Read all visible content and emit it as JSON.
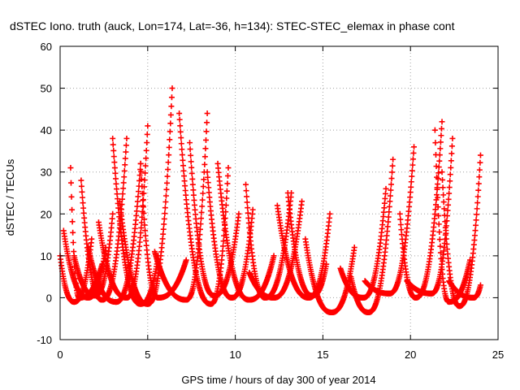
{
  "chart_data": {
    "type": "scatter",
    "title": "dSTEC Iono. truth (auck, Lon=174, Lat=-36, h=134): STEC-STEC_elemax in phase cont",
    "xlabel": "GPS time / hours of day 300 of year 2014",
    "ylabel": "dSTEC  / TECUs",
    "xlim": [
      0,
      25
    ],
    "ylim": [
      -10,
      60
    ],
    "x_ticks": [
      0,
      5,
      10,
      15,
      20,
      25
    ],
    "y_ticks": [
      -10,
      0,
      10,
      20,
      30,
      40,
      50,
      60
    ],
    "grid": true,
    "marker": "+",
    "color": "#ff0000",
    "passes": [
      {
        "t0": 0.0,
        "t1": 1.8,
        "tmin": 0.8,
        "vmin": -1.0,
        "v0": 10.0,
        "v1": 14.0
      },
      {
        "t0": 0.2,
        "t1": 2.6,
        "tmin": 1.6,
        "vmin": 0.0,
        "v0": 16.0,
        "v1": 12.0
      },
      {
        "t0": 0.6,
        "t1": 2.4,
        "tmin": 1.1,
        "vmin": 0.0,
        "v0": 31.0,
        "v1": 8.0
      },
      {
        "t0": 0.8,
        "t1": 3.0,
        "tmin": 2.0,
        "vmin": 0.5,
        "v0": 10.0,
        "v1": 20.0
      },
      {
        "t0": 1.2,
        "t1": 3.8,
        "tmin": 2.4,
        "vmin": -0.5,
        "v0": 28.0,
        "v1": 38.0
      },
      {
        "t0": 1.6,
        "t1": 4.6,
        "tmin": 3.2,
        "vmin": -1.0,
        "v0": 12.0,
        "v1": 32.0
      },
      {
        "t0": 2.2,
        "t1": 5.0,
        "tmin": 3.8,
        "vmin": 0.0,
        "v0": 18.0,
        "v1": 41.0
      },
      {
        "t0": 3.0,
        "t1": 5.6,
        "tmin": 4.6,
        "vmin": -1.5,
        "v0": 38.0,
        "v1": 10.0
      },
      {
        "t0": 3.4,
        "t1": 6.4,
        "tmin": 5.0,
        "vmin": -1.5,
        "v0": 23.0,
        "v1": 50.0
      },
      {
        "t0": 4.6,
        "t1": 7.2,
        "tmin": 5.6,
        "vmin": 0.0,
        "v0": 32.0,
        "v1": 9.0
      },
      {
        "t0": 5.4,
        "t1": 8.4,
        "tmin": 7.2,
        "vmin": -0.5,
        "v0": 11.0,
        "v1": 44.0
      },
      {
        "t0": 6.8,
        "t1": 9.6,
        "tmin": 8.6,
        "vmin": -1.5,
        "v0": 44.0,
        "v1": 31.0
      },
      {
        "t0": 7.4,
        "t1": 10.2,
        "tmin": 8.8,
        "vmin": 0.5,
        "v0": 37.0,
        "v1": 20.0
      },
      {
        "t0": 8.4,
        "t1": 11.0,
        "tmin": 9.8,
        "vmin": 0.0,
        "v0": 30.0,
        "v1": 21.0
      },
      {
        "t0": 9.0,
        "t1": 12.2,
        "tmin": 10.8,
        "vmin": -0.5,
        "v0": 32.0,
        "v1": 10.0
      },
      {
        "t0": 10.6,
        "t1": 13.2,
        "tmin": 11.7,
        "vmin": 0.0,
        "v0": 27.0,
        "v1": 25.0
      },
      {
        "t0": 10.8,
        "t1": 13.8,
        "tmin": 12.2,
        "vmin": 0.0,
        "v0": 6.0,
        "v1": 23.0
      },
      {
        "t0": 12.4,
        "t1": 15.4,
        "tmin": 14.2,
        "vmin": 0.0,
        "v0": 22.0,
        "v1": 20.0
      },
      {
        "t0": 13.0,
        "t1": 15.2,
        "tmin": 14.4,
        "vmin": 0.5,
        "v0": 25.0,
        "v1": 8.0
      },
      {
        "t0": 14.0,
        "t1": 16.8,
        "tmin": 15.5,
        "vmin": -3.5,
        "v0": 14.0,
        "v1": 12.0
      },
      {
        "t0": 16.0,
        "t1": 18.6,
        "tmin": 17.3,
        "vmin": 0.0,
        "v0": 7.0,
        "v1": 26.0
      },
      {
        "t0": 16.6,
        "t1": 19.0,
        "tmin": 17.6,
        "vmin": -3.5,
        "v0": 5.0,
        "v1": 33.0
      },
      {
        "t0": 17.4,
        "t1": 20.2,
        "tmin": 18.8,
        "vmin": 1.0,
        "v0": 4.0,
        "v1": 36.0
      },
      {
        "t0": 19.4,
        "t1": 21.8,
        "tmin": 20.3,
        "vmin": 0.0,
        "v0": 20.0,
        "v1": 42.0
      },
      {
        "t0": 19.8,
        "t1": 22.4,
        "tmin": 21.2,
        "vmin": 1.0,
        "v0": 4.0,
        "v1": 38.0
      },
      {
        "t0": 21.4,
        "t1": 23.4,
        "tmin": 22.2,
        "vmin": -1.0,
        "v0": 40.0,
        "v1": 9.0
      },
      {
        "t0": 21.8,
        "t1": 24.0,
        "tmin": 22.8,
        "vmin": -2.0,
        "v0": 30.0,
        "v1": 34.0
      },
      {
        "t0": 22.2,
        "t1": 24.0,
        "tmin": 23.6,
        "vmin": 0.0,
        "v0": 4.0,
        "v1": 3.0
      }
    ]
  }
}
